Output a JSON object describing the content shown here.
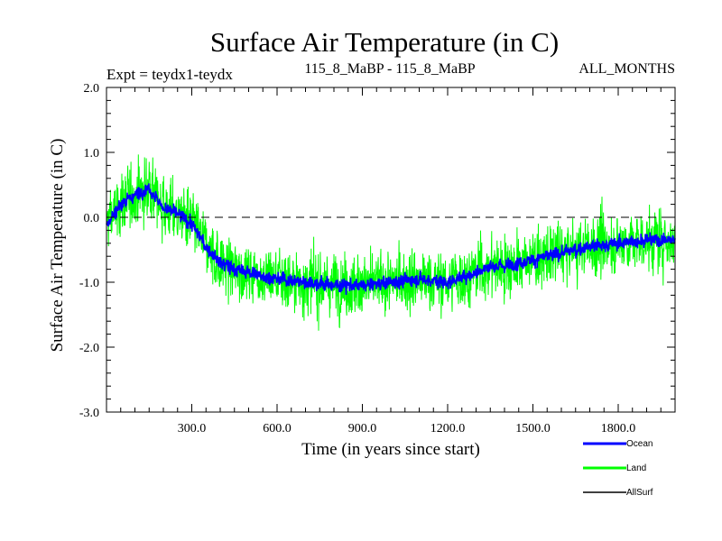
{
  "chart_data": {
    "type": "line",
    "title": "Surface Air Temperature (in C)",
    "subtitle_left": "Expt = teydx1-teydx",
    "subtitle_center": "115_8_MaBP - 115_8_MaBP",
    "subtitle_right": "ALL_MONTHS",
    "xlabel": "Time (in years since start)",
    "ylabel": "Surface Air Temperature (in C)",
    "xlim": [
      0,
      2000
    ],
    "ylim": [
      -3.0,
      2.0
    ],
    "x_ticks": [
      300,
      600,
      900,
      1200,
      1500,
      1800
    ],
    "x_tick_labels": [
      "300.0",
      "600.0",
      "900.0",
      "1200.0",
      "1500.0",
      "1800.0"
    ],
    "y_ticks": [
      2.0,
      1.0,
      0.0,
      -1.0,
      -2.0,
      -3.0
    ],
    "y_tick_labels": [
      "2.0",
      "1.0",
      "0.0",
      "-1.0",
      "-2.0",
      "-3.0"
    ],
    "zero_line": 0.0,
    "series": [
      {
        "name": "Land",
        "color": "#00ff00",
        "noise_amplitude": 0.55,
        "x": [
          0,
          50,
          100,
          150,
          200,
          250,
          300,
          350,
          400,
          450,
          500,
          600,
          700,
          800,
          900,
          1000,
          1100,
          1200,
          1300,
          1350,
          1400,
          1500,
          1600,
          1700,
          1800,
          1900,
          2000
        ],
        "values": [
          -0.1,
          0.2,
          0.35,
          0.45,
          0.15,
          0.05,
          -0.1,
          -0.45,
          -0.7,
          -0.8,
          -0.85,
          -0.95,
          -1.0,
          -1.05,
          -1.05,
          -1.0,
          -0.95,
          -1.0,
          -0.85,
          -0.75,
          -0.75,
          -0.65,
          -0.55,
          -0.45,
          -0.4,
          -0.35,
          -0.35
        ]
      },
      {
        "name": "Ocean",
        "color": "#0000ff",
        "noise_amplitude": 0.12,
        "x": [
          0,
          50,
          100,
          150,
          200,
          250,
          300,
          350,
          400,
          450,
          500,
          600,
          700,
          800,
          900,
          1000,
          1100,
          1200,
          1300,
          1350,
          1400,
          1500,
          1600,
          1700,
          1800,
          1900,
          2000
        ],
        "values": [
          -0.1,
          0.2,
          0.35,
          0.45,
          0.15,
          0.05,
          -0.1,
          -0.45,
          -0.7,
          -0.8,
          -0.85,
          -0.95,
          -1.0,
          -1.05,
          -1.05,
          -1.0,
          -0.95,
          -1.0,
          -0.85,
          -0.75,
          -0.75,
          -0.65,
          -0.55,
          -0.45,
          -0.4,
          -0.35,
          -0.35
        ]
      },
      {
        "name": "AllSurf",
        "color": "#000000",
        "x": [],
        "values": []
      }
    ],
    "legend": [
      "Ocean",
      "Land",
      "AllSurf"
    ]
  }
}
